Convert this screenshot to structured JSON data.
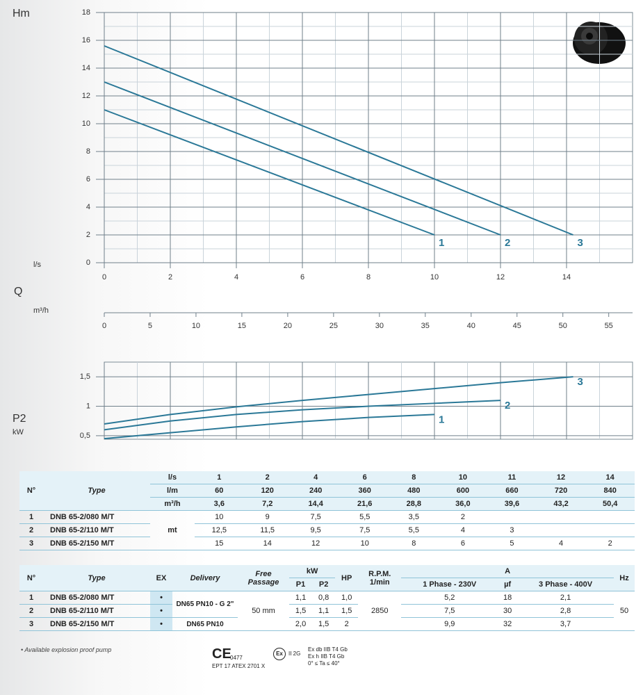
{
  "chart_data": [
    {
      "type": "line",
      "y_label": "Hm",
      "x_label": "l/s",
      "x2_label": "Q",
      "x2_unit": "m³/h",
      "xlim": [
        0,
        16
      ],
      "xticks": [
        0,
        2,
        4,
        6,
        8,
        10,
        12,
        14
      ],
      "ylim": [
        0,
        18
      ],
      "yticks": [
        0,
        2,
        4,
        6,
        8,
        10,
        12,
        14,
        16,
        18
      ],
      "x2lim": [
        0,
        57.6
      ],
      "x2ticks": [
        0,
        5,
        10,
        15,
        20,
        25,
        30,
        35,
        40,
        45,
        50,
        55
      ],
      "grid": true,
      "series": [
        {
          "name": "1",
          "color": "#2a7897",
          "x": [
            0,
            10
          ],
          "values": [
            11,
            2
          ]
        },
        {
          "name": "2",
          "color": "#2a7897",
          "x": [
            0,
            12
          ],
          "values": [
            13,
            2
          ]
        },
        {
          "name": "3",
          "color": "#2a7897",
          "x": [
            0,
            14.2
          ],
          "values": [
            15.6,
            2
          ]
        }
      ]
    },
    {
      "type": "line",
      "y_label": "P2",
      "y_unit": "kW",
      "xlim": [
        0,
        16
      ],
      "ylim": [
        0.44,
        1.75
      ],
      "yticks": [
        {
          "value": 0.5,
          "label": "0,5"
        },
        1,
        {
          "value": 1.5,
          "label": "1,5"
        }
      ],
      "grid": true,
      "series": [
        {
          "name": "1",
          "color": "#2a7897",
          "x": [
            0,
            2,
            4,
            6,
            8,
            10
          ],
          "values": [
            0.45,
            0.55,
            0.65,
            0.74,
            0.81,
            0.86
          ]
        },
        {
          "name": "2",
          "color": "#2a7897",
          "x": [
            0,
            2,
            4,
            6,
            8,
            10,
            12
          ],
          "values": [
            0.6,
            0.75,
            0.86,
            0.94,
            1.0,
            1.05,
            1.1
          ]
        },
        {
          "name": "3",
          "color": "#2a7897",
          "x": [
            0,
            2,
            4,
            6,
            8,
            10,
            12,
            14.2
          ],
          "values": [
            0.7,
            0.86,
            0.99,
            1.1,
            1.2,
            1.3,
            1.4,
            1.5
          ]
        }
      ]
    }
  ],
  "flow_table": {
    "headers": [
      "N°",
      "Type"
    ],
    "units": [
      "l/s",
      "l/m",
      "m³/h"
    ],
    "flow": [
      [
        "1",
        "2",
        "4",
        "6",
        "8",
        "10",
        "11",
        "12",
        "14"
      ],
      [
        "60",
        "120",
        "240",
        "360",
        "480",
        "600",
        "660",
        "720",
        "840"
      ],
      [
        "3,6",
        "7,2",
        "14,4",
        "21,6",
        "28,8",
        "36,0",
        "39,6",
        "43,2",
        "50,4"
      ]
    ],
    "unit": "mt",
    "rows": [
      {
        "n": "1",
        "type": "DNB 65-2/080 M/T",
        "values": [
          "10",
          "9",
          "7,5",
          "5,5",
          "3,5",
          "2"
        ]
      },
      {
        "n": "2",
        "type": "DNB 65-2/110 M/T",
        "values": [
          "12,5",
          "11,5",
          "9,5",
          "7,5",
          "5,5",
          "4",
          "3"
        ]
      },
      {
        "n": "3",
        "type": "DNB 65-2/150 M/T",
        "values": [
          "15",
          "14",
          "12",
          "10",
          "8",
          "6",
          "5",
          "4",
          "2"
        ]
      }
    ]
  },
  "spec_table": {
    "headers": {
      "n": "N°",
      "type": "Type",
      "ex": "EX",
      "delivery": "Delivery",
      "passage": "Free Passage",
      "kw": "kW",
      "p1": "P1",
      "p2": "P2",
      "hp": "HP",
      "rpm": "R.P.M.",
      "rpm_unit": "1/min",
      "a": "A",
      "phase1": "1 Phase - 230V",
      "uf": "µf",
      "phase3": "3 Phase - 400V",
      "hz": "Hz"
    },
    "rows": [
      {
        "n": "1",
        "type": "DNB 65-2/080 M/T",
        "ex": "•",
        "p1": "1,1",
        "p2": "0,8",
        "hp": "1,0",
        "a1": "5,2",
        "uf": "18",
        "a3": "2,1"
      },
      {
        "n": "2",
        "type": "DNB 65-2/110 M/T",
        "ex": "•",
        "p1": "1,5",
        "p2": "1,1",
        "hp": "1,5",
        "a1": "7,5",
        "uf": "30",
        "a3": "2,8"
      },
      {
        "n": "3",
        "type": "DNB 65-2/150 M/T",
        "ex": "•",
        "p1": "2,0",
        "p2": "1,5",
        "hp": "2",
        "a1": "9,9",
        "uf": "32",
        "a3": "3,7"
      }
    ],
    "delivery": [
      "DN65 PN10 - G 2\"",
      "DN65 PN10"
    ],
    "passage": "50 mm",
    "rpm": "2850",
    "hz": "50"
  },
  "footnote": "• Available explosion proof pump",
  "certs": {
    "ce": "CE",
    "ce_number": "0477",
    "atex": "EPT 17 ATEX 2701 X",
    "ex": "Ex",
    "group": "II 2G",
    "lines": [
      "Ex db IIB T4 Gb",
      "Ex h IIB T4 Gb",
      "0° ≤ Ta ≤ 40°"
    ]
  }
}
